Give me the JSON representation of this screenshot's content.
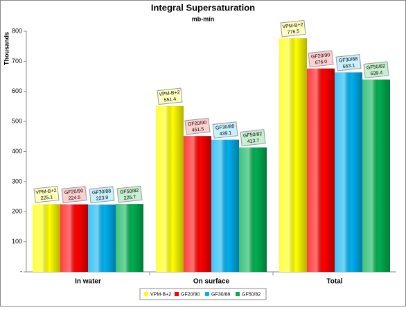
{
  "chart_data": {
    "type": "bar",
    "title": "Integral Supersaturation",
    "subtitle": "mb-min",
    "y_label": "Thousands",
    "categories": [
      "In water",
      "On surface",
      "Total"
    ],
    "series": [
      {
        "name": "VPM-B+2",
        "color": "#ffff00",
        "label_color": "#ffffc0",
        "values": [
          225.1,
          551.4,
          776.5
        ]
      },
      {
        "name": "GF20/90",
        "color": "#ff0000",
        "label_color": "#ffd0d0",
        "values": [
          224.5,
          451.5,
          676.0
        ],
        "value_labels": [
          "224.5",
          "451.5",
          "676.0"
        ]
      },
      {
        "name": "GF30/88",
        "color": "#00b0f0",
        "label_color": "#c8f0ff",
        "values": [
          223.9,
          439.1,
          663.1
        ]
      },
      {
        "name": "GF50/82",
        "color": "#00b050",
        "label_color": "#c8f0d0",
        "values": [
          225.7,
          413.7,
          639.4
        ]
      }
    ],
    "ylim": [
      0,
      800
    ],
    "yticks": [
      {
        "value": 0,
        "label": "-"
      },
      100,
      200,
      300,
      400,
      500,
      600,
      700,
      800
    ],
    "grid": false,
    "legend": "bottom"
  }
}
